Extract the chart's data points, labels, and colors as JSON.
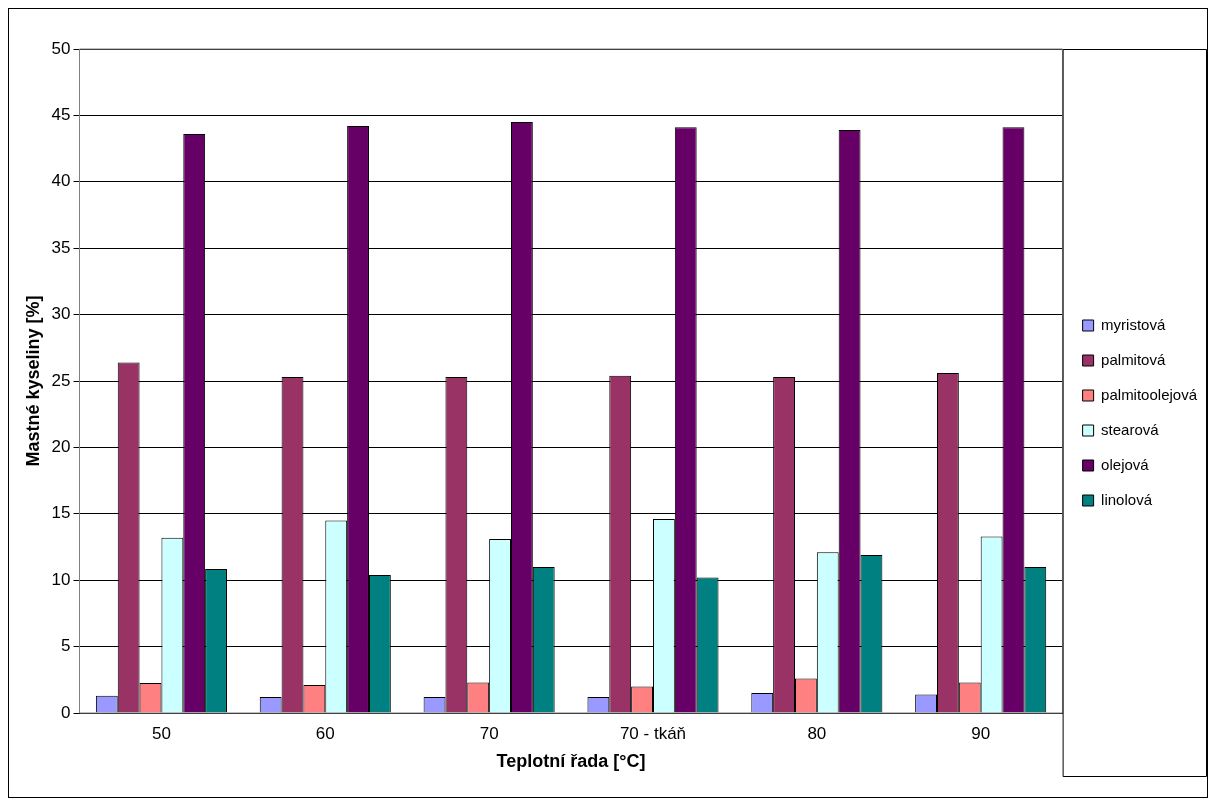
{
  "chart_data": {
    "type": "bar",
    "xlabel": "Teplotní řada [°C]",
    "ylabel": "Mastné kyseliny [%]",
    "categories": [
      "50",
      "60",
      "70",
      "70 - tkáň",
      "80",
      "90"
    ],
    "series": [
      {
        "name": "myristová",
        "color": "#9999ff",
        "values": [
          1.3,
          1.2,
          1.2,
          1.2,
          1.5,
          1.4
        ]
      },
      {
        "name": "palmitová",
        "color": "#993366",
        "values": [
          26.4,
          25.3,
          25.3,
          25.4,
          25.3,
          25.6
        ]
      },
      {
        "name": "palmitoolejová",
        "color": "#ff8080",
        "values": [
          2.25,
          2.1,
          2.3,
          2.0,
          2.6,
          2.3
        ]
      },
      {
        "name": "stearová",
        "color": "#ccffff",
        "values": [
          13.2,
          14.5,
          13.1,
          14.6,
          12.1,
          13.3
        ]
      },
      {
        "name": "olejová",
        "color": "#660066",
        "values": [
          43.6,
          44.2,
          44.5,
          44.1,
          43.9,
          44.1
        ]
      },
      {
        "name": "linolová",
        "color": "#008080",
        "values": [
          10.85,
          10.4,
          11.0,
          10.2,
          11.9,
          11.0
        ]
      }
    ],
    "ylim": [
      0,
      50
    ],
    "yticks": [
      0,
      5,
      10,
      15,
      20,
      25,
      30,
      35,
      40,
      45,
      50
    ],
    "grid": "y",
    "legend": "right"
  }
}
